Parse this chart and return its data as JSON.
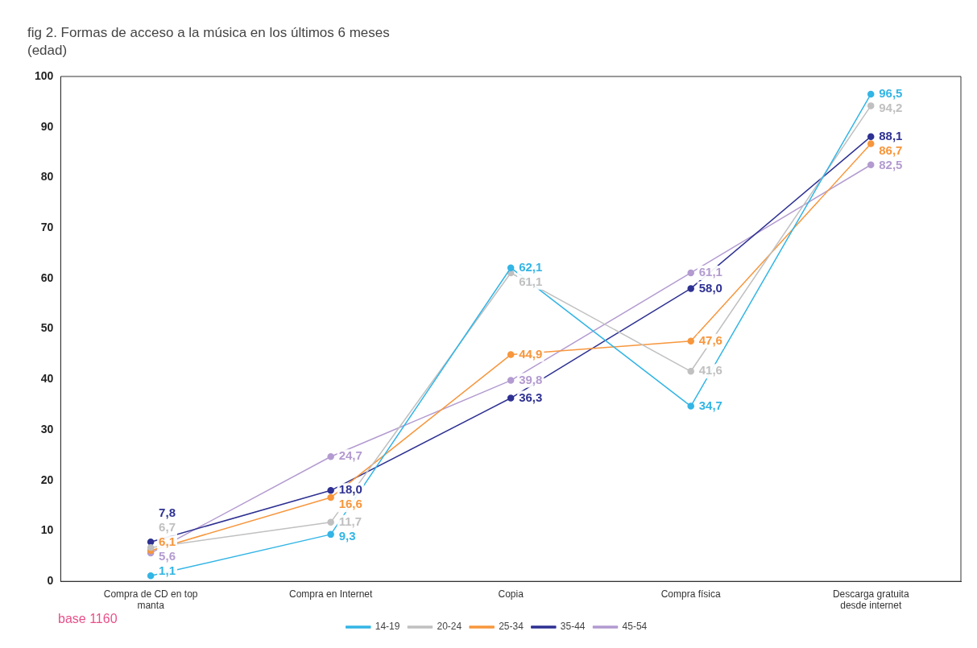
{
  "chart_data": {
    "type": "line",
    "title": "fig 2. Formas de acceso a la música en los últimos 6 meses (edad)",
    "categories": [
      "Compra de CD en top manta",
      "Compra en Internet",
      "Copia",
      "Compra física",
      "Descarga gratuita desde internet"
    ],
    "series": [
      {
        "name": "14-19",
        "color": "#33b5e5",
        "values": [
          1.1,
          9.3,
          62.1,
          34.7,
          96.5
        ],
        "value_labels": [
          "1,1",
          "9,3",
          "62,1",
          "34,7",
          "96,5"
        ]
      },
      {
        "name": "20-24",
        "color": "#c0c0c0",
        "values": [
          6.7,
          11.7,
          61.1,
          41.6,
          94.2
        ],
        "value_labels": [
          "6,7",
          "11,7",
          "61,1",
          "41,6",
          "94,2"
        ]
      },
      {
        "name": "25-34",
        "color": "#f7963c",
        "values": [
          6.1,
          16.6,
          44.9,
          47.6,
          86.7
        ],
        "value_labels": [
          "6,1",
          "16,6",
          "44,9",
          "47,6",
          "86,7"
        ]
      },
      {
        "name": "35-44",
        "color": "#2e3192",
        "values": [
          7.8,
          18.0,
          36.3,
          58.0,
          88.1
        ],
        "value_labels": [
          "7,8",
          "18,0",
          "36,3",
          "58,0",
          "88,1"
        ]
      },
      {
        "name": "45-54",
        "color": "#b39bd0",
        "values": [
          5.6,
          24.7,
          39.8,
          61.1,
          82.5
        ],
        "value_labels": [
          "5,6",
          "24,7",
          "39,8",
          "61,1",
          "82,5"
        ]
      }
    ],
    "ylim": [
      0,
      100
    ],
    "yticks": [
      0,
      10,
      20,
      30,
      40,
      50,
      60,
      70,
      80,
      90,
      100
    ],
    "grid": false,
    "legend": "bottom",
    "marker": "circle",
    "line_style": "solid",
    "annotations": [
      "base 1160"
    ]
  }
}
